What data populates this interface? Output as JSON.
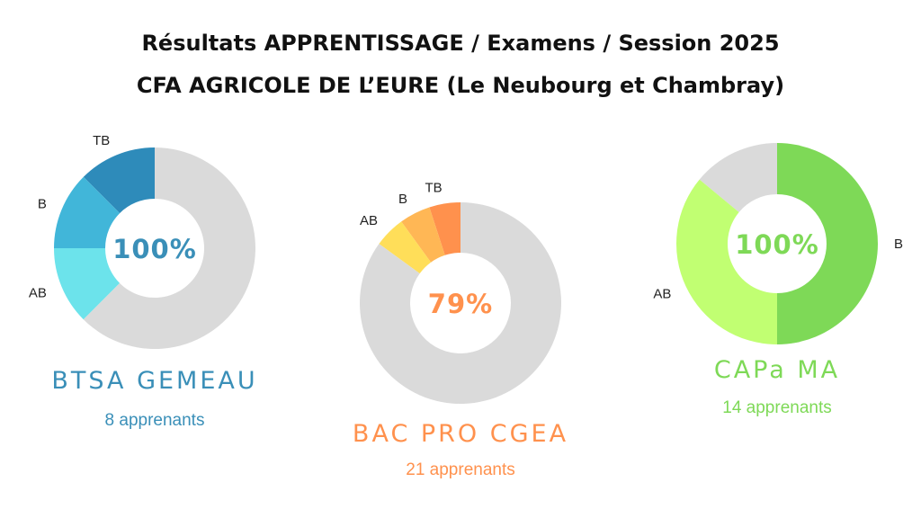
{
  "header": {
    "title_line1": "Résultats APPRENTISSAGE / Examens / Session 2025",
    "title_line2": "CFA AGRICOLE DE L’EURE (Le Neubourg et Chambray)"
  },
  "chart_data": [
    {
      "type": "pie",
      "donut": true,
      "name": "BTSA GEMEAU",
      "subtitle": "8 apprenants",
      "center_label": "100%",
      "accent": "#3A8FB8",
      "rest_color": "#DADADA",
      "slices": [
        {
          "label": "TB",
          "value": 12.5,
          "color": "#2E8BBA"
        },
        {
          "label": "B",
          "value": 12.5,
          "color": "#41B6D9"
        },
        {
          "label": "AB",
          "value": 12.5,
          "color": "#6CE3EB"
        },
        {
          "label": "",
          "value": 62.5,
          "color": "#DADADA"
        }
      ]
    },
    {
      "type": "pie",
      "donut": true,
      "name": "BAC PRO CGEA",
      "subtitle": "21 apprenants",
      "center_label": "79%",
      "accent": "#FF914D",
      "rest_color": "#DADADA",
      "slices": [
        {
          "label": "TB",
          "value": 5,
          "color": "#FF914D"
        },
        {
          "label": "B",
          "value": 5,
          "color": "#FFB755"
        },
        {
          "label": "AB",
          "value": 5,
          "color": "#FFDE59"
        },
        {
          "label": "",
          "value": 85,
          "color": "#DADADA"
        }
      ]
    },
    {
      "type": "pie",
      "donut": true,
      "name": "CAPa MA",
      "subtitle": "14 apprenants",
      "center_label": "100%",
      "accent": "#7ED957",
      "rest_color": "#DADADA",
      "slices": [
        {
          "label": "",
          "value": 14,
          "color": "#DADADA"
        },
        {
          "label": "AB",
          "value": 36,
          "color": "#C1FF72"
        },
        {
          "label": "B",
          "value": 50,
          "color": "#7ED957"
        }
      ]
    }
  ]
}
